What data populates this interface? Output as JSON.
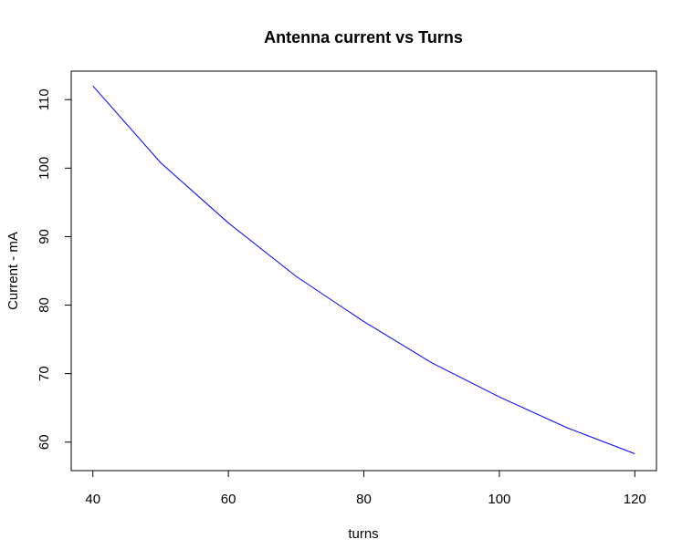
{
  "chart_data": {
    "type": "line",
    "title": "Antenna current vs Turns",
    "xlabel": "turns",
    "ylabel": "Current - mA",
    "xlim": [
      36.8,
      123.2
    ],
    "ylim": [
      55.84,
      114.16
    ],
    "xticks": [
      40,
      60,
      80,
      100,
      120
    ],
    "yticks": [
      60,
      70,
      80,
      90,
      100,
      110
    ],
    "xtick_labels": [
      "40",
      "60",
      "80",
      "100",
      "120"
    ],
    "ytick_labels": [
      "60",
      "70",
      "80",
      "90",
      "100",
      "110"
    ],
    "grid": false,
    "line_color": "#0000ff",
    "series": [
      {
        "x": [
          40,
          50,
          60,
          70,
          80,
          90,
          100,
          110,
          120
        ],
        "y": [
          112.0,
          100.8,
          92.0,
          84.2,
          77.6,
          71.6,
          66.6,
          62.1,
          58.3
        ]
      }
    ]
  }
}
